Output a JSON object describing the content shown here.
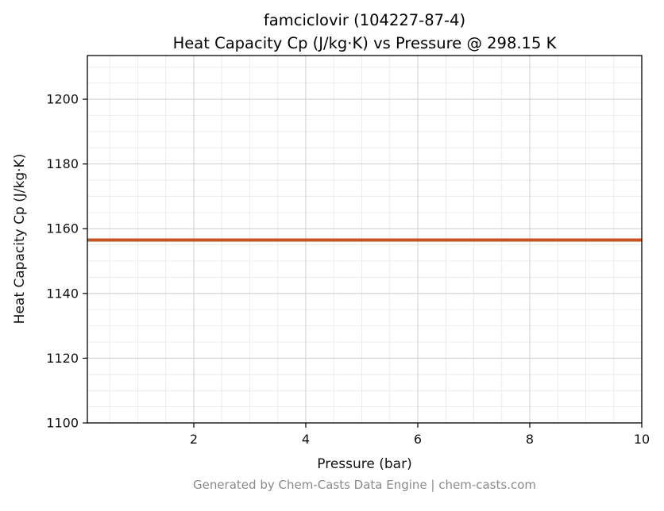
{
  "title": {
    "line1": "famciclovir (104227-87-4)",
    "line2": "Heat Capacity Cp (J/kg·K) vs Pressure @ 298.15 K"
  },
  "footer": {
    "text": "Generated by Chem-Casts Data Engine | chem-casts.com"
  },
  "chart_data": {
    "type": "line",
    "title": "famciclovir (104227-87-4)",
    "subtitle": "Heat Capacity Cp (J/kg·K) vs Pressure @ 298.15 K",
    "xlabel": "Pressure (bar)",
    "ylabel": "Heat Capacity Cp (J/kg·K)",
    "xlim": [
      0.1,
      10.0
    ],
    "ylim": [
      1100,
      1213.5
    ],
    "x_ticks": [
      2,
      4,
      6,
      8,
      10
    ],
    "y_ticks": [
      1100,
      1120,
      1140,
      1160,
      1180,
      1200
    ],
    "x_minor_step": 0.5,
    "y_minor_step": 5,
    "grid": true,
    "legend": "none",
    "series": [
      {
        "name": "Heat Capacity Cp",
        "x": [
          0.1,
          10.0
        ],
        "y": [
          1156.5,
          1156.5
        ],
        "color": "#c8511f",
        "linewidth": 4
      }
    ]
  }
}
